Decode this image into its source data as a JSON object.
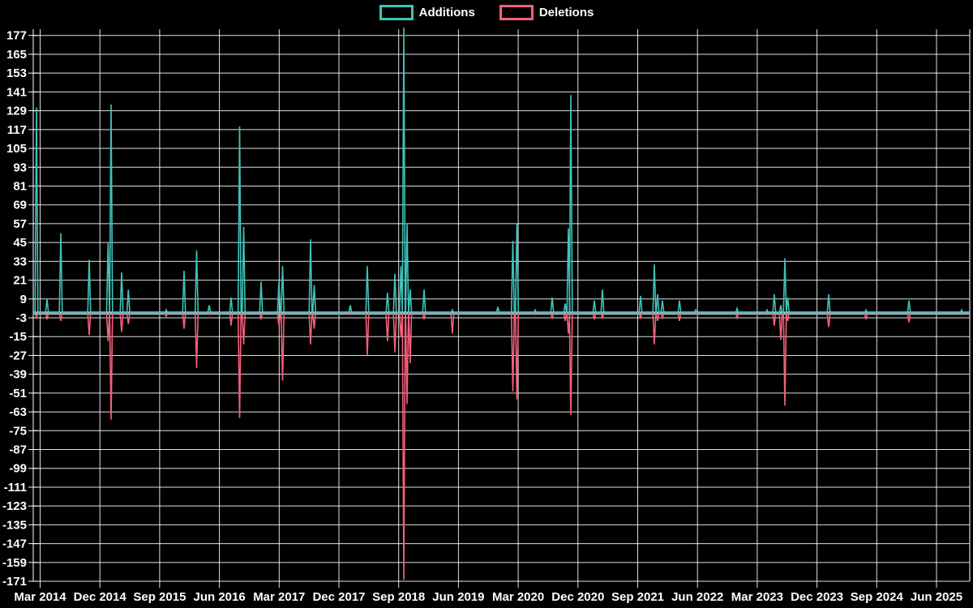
{
  "page": {
    "background": "#000000"
  },
  "colors": {
    "background": "#000000",
    "additions": "#3FC3BA",
    "deletions": "#F4607A",
    "grid": "#FFFFFF",
    "zero_line": "#9FB9C4",
    "text": "#FFFFFF"
  },
  "legend": {
    "items": [
      {
        "label": "Additions",
        "color": "#3FC3BA"
      },
      {
        "label": "Deletions",
        "color": "#F4607A"
      }
    ]
  },
  "chart_data": {
    "type": "line",
    "title": "",
    "legend_position": "top-center",
    "grid": true,
    "x_tick_labels": [
      "Mar 2014",
      "Dec 2014",
      "Sep 2015",
      "Jun 2016",
      "Mar 2017",
      "Dec 2017",
      "Sep 2018",
      "Jun 2019",
      "Mar 2020",
      "Dec 2020",
      "Sep 2021",
      "Jun 2022",
      "Mar 2023",
      "Dec 2023",
      "Sep 2024",
      "Jun 2025"
    ],
    "months_between_x_ticks": 9,
    "points_x_unit": "months since Mar 2014 tick",
    "y_ticks": [
      177,
      165,
      153,
      141,
      129,
      117,
      105,
      93,
      81,
      69,
      57,
      45,
      33,
      21,
      9,
      -3,
      -15,
      -27,
      -39,
      -51,
      -63,
      -75,
      -87,
      -99,
      -111,
      -123,
      -135,
      -147,
      -159,
      -171
    ],
    "y_tick_step": 12,
    "ylim": [
      -171,
      177
    ],
    "baseline": 0,
    "series": [
      {
        "name": "Additions",
        "color": "#3FC3BA",
        "points": [
          [
            -0.55,
            131
          ],
          [
            1.04,
            9
          ],
          [
            3.11,
            51
          ],
          [
            7.39,
            34
          ],
          [
            10.23,
            45
          ],
          [
            10.69,
            133
          ],
          [
            12.27,
            26
          ],
          [
            13.29,
            15
          ],
          [
            18.99,
            2
          ],
          [
            21.68,
            27
          ],
          [
            23.57,
            40
          ],
          [
            25.46,
            5
          ],
          [
            28.76,
            10
          ],
          [
            30.04,
            119
          ],
          [
            30.65,
            55
          ],
          [
            33.28,
            20
          ],
          [
            35.96,
            20
          ],
          [
            36.51,
            30
          ],
          [
            40.73,
            47
          ],
          [
            41.27,
            18
          ],
          [
            46.71,
            5
          ],
          [
            49.27,
            30
          ],
          [
            52.32,
            13
          ],
          [
            53.42,
            25
          ],
          [
            54.34,
            30
          ],
          [
            54.77,
            182
          ],
          [
            55.26,
            57
          ],
          [
            55.74,
            15
          ],
          [
            57.82,
            15
          ],
          [
            62.09,
            2
          ],
          [
            68.93,
            4
          ],
          [
            71.19,
            46
          ],
          [
            71.8,
            57
          ],
          [
            74.55,
            2
          ],
          [
            77.12,
            10
          ],
          [
            79.07,
            6
          ],
          [
            79.56,
            54
          ],
          [
            79.93,
            139
          ],
          [
            83.47,
            8
          ],
          [
            84.69,
            15
          ],
          [
            90.43,
            11
          ],
          [
            92.5,
            31
          ],
          [
            92.99,
            12
          ],
          [
            93.72,
            8
          ],
          [
            96.29,
            8
          ],
          [
            98.73,
            2
          ],
          [
            104.96,
            3
          ],
          [
            109.48,
            2
          ],
          [
            110.57,
            12
          ],
          [
            111.55,
            5
          ],
          [
            112.16,
            35
          ],
          [
            112.59,
            10
          ],
          [
            118.76,
            12
          ],
          [
            124.37,
            2
          ],
          [
            130.85,
            8
          ],
          [
            138.78,
            2
          ]
        ]
      },
      {
        "name": "Deletions",
        "color": "#F4607A",
        "points": [
          [
            -0.55,
            -3
          ],
          [
            1.04,
            -4
          ],
          [
            3.11,
            -5
          ],
          [
            7.39,
            -14
          ],
          [
            10.23,
            -18
          ],
          [
            10.69,
            -68
          ],
          [
            12.27,
            -12
          ],
          [
            13.29,
            -7
          ],
          [
            18.99,
            -2
          ],
          [
            21.68,
            -10
          ],
          [
            23.57,
            -35
          ],
          [
            25.46,
            -1
          ],
          [
            28.76,
            -8
          ],
          [
            30.04,
            -67
          ],
          [
            30.65,
            -20
          ],
          [
            33.28,
            -4
          ],
          [
            35.96,
            -8
          ],
          [
            36.51,
            -43
          ],
          [
            40.73,
            -20
          ],
          [
            41.27,
            -10
          ],
          [
            46.71,
            -1
          ],
          [
            49.27,
            -27
          ],
          [
            52.32,
            -18
          ],
          [
            53.42,
            -25
          ],
          [
            54.34,
            -15
          ],
          [
            54.77,
            -170
          ],
          [
            55.26,
            -58
          ],
          [
            55.74,
            -32
          ],
          [
            57.82,
            -4
          ],
          [
            62.09,
            -13
          ],
          [
            68.93,
            -1
          ],
          [
            71.19,
            -50
          ],
          [
            71.8,
            -55
          ],
          [
            74.55,
            -1
          ],
          [
            77.12,
            -3
          ],
          [
            79.07,
            -5
          ],
          [
            79.56,
            -13
          ],
          [
            79.93,
            -65
          ],
          [
            83.47,
            -4
          ],
          [
            84.69,
            -3
          ],
          [
            90.43,
            -3
          ],
          [
            92.5,
            -20
          ],
          [
            92.99,
            -5
          ],
          [
            93.72,
            -3
          ],
          [
            96.29,
            -5
          ],
          [
            98.73,
            -1
          ],
          [
            104.96,
            -3
          ],
          [
            109.48,
            -1
          ],
          [
            110.57,
            -8
          ],
          [
            111.55,
            -17
          ],
          [
            112.16,
            -59
          ],
          [
            112.59,
            -5
          ],
          [
            118.76,
            -9
          ],
          [
            124.37,
            -4
          ],
          [
            130.85,
            -6
          ],
          [
            138.78,
            -1
          ]
        ]
      }
    ]
  }
}
